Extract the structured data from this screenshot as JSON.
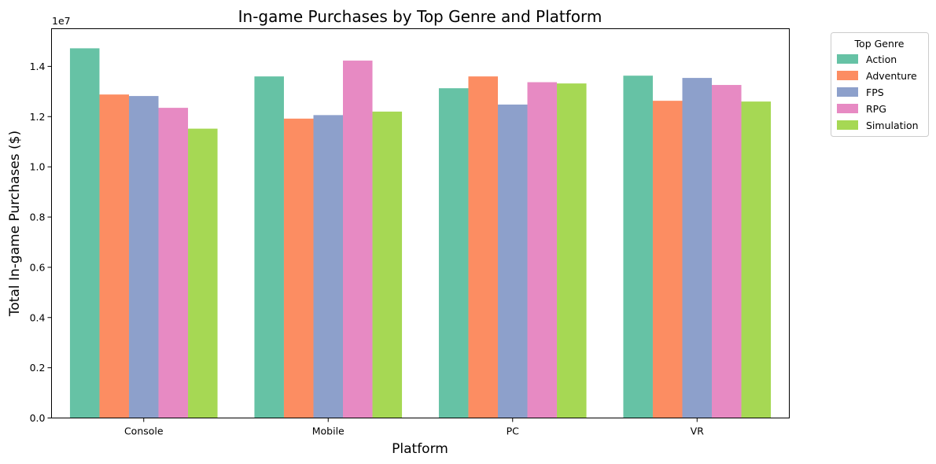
{
  "chart_data": {
    "type": "bar",
    "title": "In-game Purchases by Top Genre and Platform",
    "xlabel": "Platform",
    "ylabel": "Total In-game Purchases ($)",
    "y_offset_text": "1e7",
    "ylim": [
      0,
      1.55
    ],
    "y_ticks": [
      "0.0",
      "0.2",
      "0.4",
      "0.6",
      "0.8",
      "1.0",
      "1.2",
      "1.4"
    ],
    "categories": [
      "Console",
      "Mobile",
      "PC",
      "VR"
    ],
    "legend_title": "Top Genre",
    "legend_position": "outside-top-right",
    "grid": false,
    "series": [
      {
        "name": "Action",
        "color": "#66c2a5",
        "values": [
          1.472,
          1.36,
          1.313,
          1.363
        ]
      },
      {
        "name": "Adventure",
        "color": "#fc8d62",
        "values": [
          1.288,
          1.192,
          1.36,
          1.263
        ]
      },
      {
        "name": "FPS",
        "color": "#8da0cb",
        "values": [
          1.282,
          1.206,
          1.248,
          1.354
        ]
      },
      {
        "name": "RPG",
        "color": "#e78ac3",
        "values": [
          1.235,
          1.423,
          1.337,
          1.326
        ]
      },
      {
        "name": "Simulation",
        "color": "#a6d854",
        "values": [
          1.152,
          1.22,
          1.332,
          1.26
        ]
      }
    ]
  }
}
